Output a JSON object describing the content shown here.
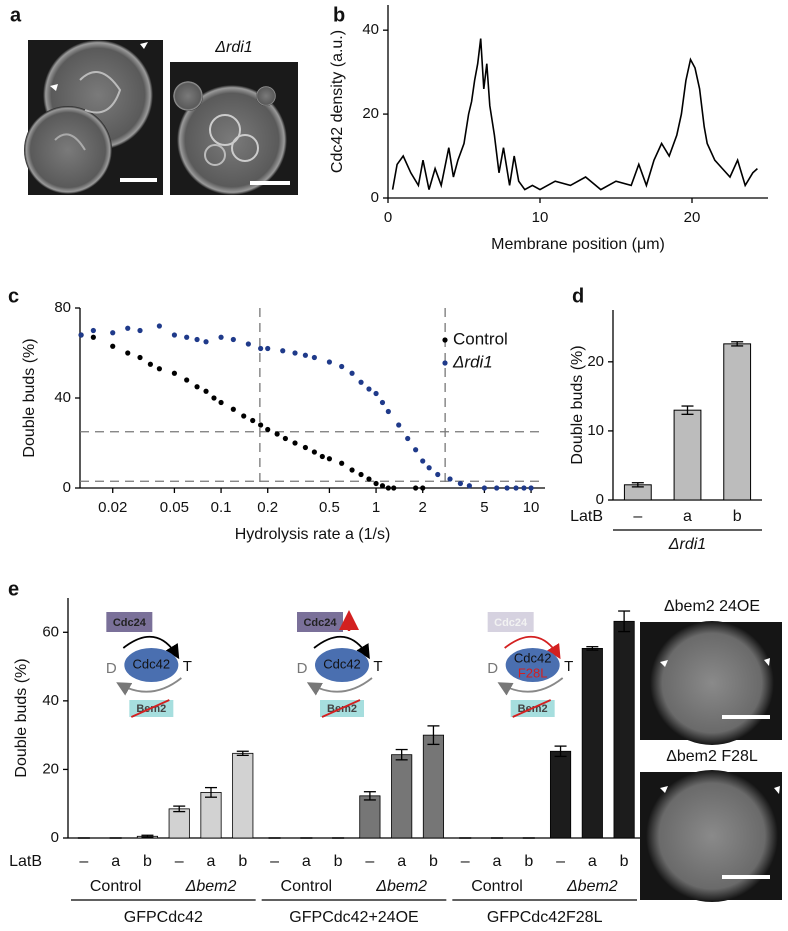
{
  "image_a": {
    "panel_label": "a",
    "caption": "Δrdi1"
  },
  "image_e": {
    "captions": [
      "Δbem2 24OE",
      "Δbem2 F28L"
    ]
  },
  "chart_data": [
    {
      "type": "line",
      "panel_label": "b",
      "xlabel": "Membrane position (μm)",
      "ylabel": "Cdc42 density (a.u.)",
      "xlim": [
        0,
        25
      ],
      "ylim": [
        0,
        46
      ],
      "xticks": [
        0,
        10,
        20
      ],
      "yticks": [
        0,
        20,
        40
      ],
      "color": "#000000",
      "x": [
        0.3,
        0.6,
        1,
        1.5,
        2,
        2.3,
        2.7,
        3.1,
        3.5,
        4,
        4.3,
        4.6,
        5,
        5.3,
        5.5,
        5.7,
        5.9,
        6.1,
        6.3,
        6.5,
        6.7,
        7,
        7.3,
        7.6,
        8,
        8.3,
        8.6,
        9,
        9.5,
        10,
        11,
        12,
        13,
        14,
        15,
        16,
        16.5,
        17,
        17.5,
        18,
        18.5,
        19,
        19.3,
        19.6,
        19.9,
        20.2,
        20.5,
        20.8,
        21,
        21.5,
        22,
        22.5,
        23,
        23.5,
        24,
        24.3
      ],
      "values": [
        2,
        8,
        10,
        6,
        3,
        9,
        2,
        7,
        3,
        12,
        5,
        9,
        13,
        20,
        23,
        28,
        32,
        38,
        26,
        32,
        22,
        15,
        6,
        12,
        3,
        10,
        4,
        2,
        3,
        2,
        4,
        3,
        5,
        2,
        4,
        3,
        8,
        3,
        9,
        13,
        10,
        15,
        20,
        28,
        33,
        31,
        26,
        17,
        13,
        9,
        7,
        5,
        9,
        3,
        6,
        7
      ]
    },
    {
      "type": "scatter",
      "panel_label": "c",
      "xlabel": "Hydrolysis rate a (1/s)",
      "ylabel": "Double buds (%)",
      "log_x": true,
      "xlim": [
        0.0123,
        12.3
      ],
      "ylim": [
        0,
        80
      ],
      "xticks": [
        0.02,
        0.05,
        0.1,
        0.2,
        0.5,
        1,
        2,
        5,
        10
      ],
      "yticks": [
        0,
        40,
        80
      ],
      "vlines": [
        0.178,
        2.79
      ],
      "hlines": [
        25,
        3
      ],
      "legend": "upper right",
      "series": [
        {
          "name": "Control",
          "color": "#000000",
          "x": [
            0.0125,
            0.015,
            0.02,
            0.025,
            0.03,
            0.035,
            0.04,
            0.05,
            0.06,
            0.07,
            0.08,
            0.09,
            0.1,
            0.12,
            0.14,
            0.16,
            0.18,
            0.2,
            0.23,
            0.26,
            0.3,
            0.35,
            0.4,
            0.45,
            0.5,
            0.6,
            0.7,
            0.8,
            0.9,
            1,
            1.1,
            1.2,
            1.3,
            1.8,
            2
          ],
          "values": [
            68,
            67,
            63,
            60,
            58,
            55,
            53,
            51,
            48,
            45,
            43,
            40,
            38,
            35,
            32,
            30,
            28,
            26,
            24,
            22,
            20,
            18,
            16,
            14,
            13,
            11,
            8,
            6,
            4,
            2,
            1,
            0,
            0,
            0,
            0
          ]
        },
        {
          "name": "Δrdi1",
          "color": "#1f3a8a",
          "x": [
            0.0125,
            0.015,
            0.02,
            0.025,
            0.03,
            0.04,
            0.05,
            0.06,
            0.07,
            0.08,
            0.1,
            0.12,
            0.15,
            0.18,
            0.2,
            0.25,
            0.3,
            0.35,
            0.4,
            0.5,
            0.6,
            0.7,
            0.8,
            0.9,
            1,
            1.1,
            1.2,
            1.4,
            1.6,
            1.8,
            2,
            2.2,
            2.5,
            3,
            3.5,
            4,
            5,
            6,
            7,
            8,
            9,
            10
          ],
          "values": [
            68,
            70,
            69,
            71,
            70,
            72,
            68,
            67,
            66,
            65,
            67,
            66,
            64,
            62,
            62,
            61,
            60,
            59,
            58,
            56,
            54,
            51,
            47,
            44,
            42,
            38,
            34,
            28,
            22,
            17,
            12,
            9,
            6,
            4,
            2,
            1,
            0,
            0,
            0,
            0,
            0,
            0
          ]
        }
      ]
    },
    {
      "type": "bar",
      "panel_label": "d",
      "ylabel": "Double buds (%)",
      "x_prefix": "LatB",
      "group_label": "Δrdi1",
      "categories": [
        "–",
        "a",
        "b"
      ],
      "values": [
        2.2,
        13,
        22.6
      ],
      "errors": [
        0.3,
        0.6,
        0.3
      ],
      "color": "#bcbcbc",
      "ylim": [
        0,
        27.5
      ],
      "yticks": [
        0,
        10,
        20
      ]
    },
    {
      "type": "grouped_bar",
      "panel_label": "e",
      "ylabel": "Double buds (%)",
      "x_prefix": "LatB",
      "ylim": [
        0,
        70
      ],
      "yticks": [
        0,
        20,
        40,
        60
      ],
      "categories": [
        "–",
        "a",
        "b",
        "–",
        "a",
        "b",
        "–",
        "a",
        "b",
        "–",
        "a",
        "b",
        "–",
        "a",
        "b",
        "–",
        "a",
        "b"
      ],
      "values": [
        0,
        0,
        0.5,
        8.5,
        13.3,
        24.7,
        0,
        0,
        0,
        12.3,
        24.3,
        30,
        0,
        0,
        0,
        25.3,
        55.3,
        63.2
      ],
      "errors": [
        0,
        0,
        0.3,
        0.8,
        1.4,
        0.6,
        0,
        0,
        0,
        1.2,
        1.5,
        2.7,
        0,
        0,
        0,
        1.5,
        0.5,
        3
      ],
      "groups": [
        {
          "name": "GFPCdc42",
          "color": "#d2d2d2",
          "subgroups": [
            "Control",
            "Δbem2"
          ]
        },
        {
          "name": "GFPCdc42+24OE",
          "color": "#767676",
          "subgroups": [
            "Control",
            "Δbem2"
          ]
        },
        {
          "name": "GFPCdc42F28L",
          "color": "#1c1c1c",
          "subgroups": [
            "Control",
            "Δbem2"
          ]
        }
      ],
      "diagrams": [
        {
          "gef": "Cdc24",
          "gtpase": "Cdc42",
          "d": "D",
          "t": "T",
          "gap": "Bem2"
        },
        {
          "gef": "Cdc24",
          "gtpase": "Cdc42",
          "d": "D",
          "t": "T",
          "gap": "Bem2"
        },
        {
          "gef": "Cdc24",
          "gtpase": "Cdc42",
          "mutation": "F28L",
          "d": "D",
          "t": "T",
          "gap": "Bem2"
        }
      ]
    }
  ]
}
